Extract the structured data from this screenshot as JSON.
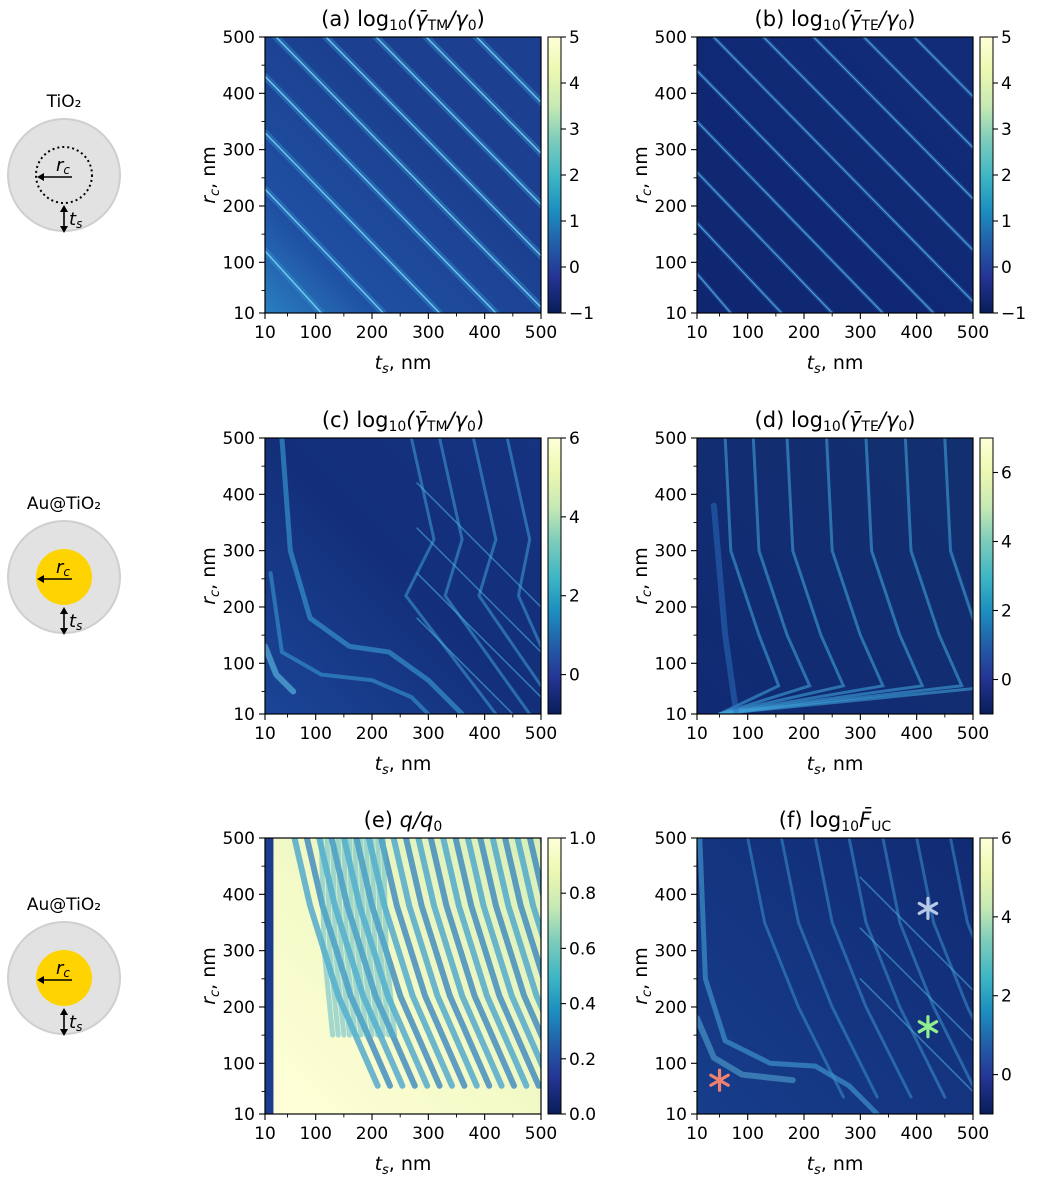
{
  "rows": [
    {
      "schematic": {
        "label": "TiO₂",
        "core": "dotted",
        "rc_label": "r",
        "rc_sub": "c",
        "ts_label": "t",
        "ts_sub": "s"
      },
      "panels": [
        {
          "id": "a",
          "title": "(a) log₁₀(γ̄ₙₘ/γ₀)"
        },
        {
          "id": "b",
          "title": "(b) log₁₀(γ̄ₜₑ/γ₀)"
        }
      ]
    },
    {
      "schematic": {
        "label": "Au@TiO₂",
        "core": "gold",
        "rc_label": "r",
        "rc_sub": "c",
        "ts_label": "t",
        "ts_sub": "s"
      },
      "panels": [
        {
          "id": "c",
          "title": "(c) log₁₀(γ̄ₙₘ/γ₀)"
        },
        {
          "id": "d",
          "title": "(d) log₁₀(γ̄ₜₑ/γ₀)"
        }
      ]
    },
    {
      "schematic": {
        "label": "Au@TiO₂",
        "core": "gold",
        "rc_label": "r",
        "rc_sub": "c",
        "ts_label": "t",
        "ts_sub": "s"
      },
      "panels": [
        {
          "id": "e",
          "title": "(e) q/q₀"
        },
        {
          "id": "f",
          "title": "(f) log₁₀F̄ᵤᶜ"
        }
      ]
    }
  ],
  "chart_data": [
    {
      "id": "a",
      "type": "heatmap",
      "title_prefix": "(a) log",
      "title_sub": "10",
      "title_frac": "(γ̄",
      "title_frac_sub": "TM",
      "title_den": "/γ",
      "title_den_sub": "0",
      "title_end": ")",
      "xlabel_main": "t",
      "xlabel_sub": "s",
      "xlabel_unit": ", nm",
      "ylabel_main": "r",
      "ylabel_sub": "c",
      "ylabel_unit": ", nm",
      "xlim": [
        10,
        500
      ],
      "ylim": [
        10,
        500
      ],
      "xticks": [
        10,
        100,
        200,
        300,
        400,
        500
      ],
      "yticks": [
        10,
        100,
        200,
        300,
        400,
        500
      ],
      "colorbar": {
        "min": -1,
        "max": 5,
        "ticks": [
          5,
          4,
          3,
          2,
          1,
          0,
          -1
        ],
        "tick_labels": [
          "5",
          "4",
          "3",
          "2",
          "1",
          "0",
          "−1"
        ]
      }
    },
    {
      "id": "b",
      "type": "heatmap",
      "title_prefix": "(b) log",
      "title_sub": "10",
      "title_frac": "(γ̄",
      "title_frac_sub": "TE",
      "title_den": "/γ",
      "title_den_sub": "0",
      "title_end": ")",
      "xlabel_main": "t",
      "xlabel_sub": "s",
      "xlabel_unit": ", nm",
      "ylabel_main": "r",
      "ylabel_sub": "c",
      "ylabel_unit": ", nm",
      "xlim": [
        10,
        500
      ],
      "ylim": [
        10,
        500
      ],
      "xticks": [
        10,
        100,
        200,
        300,
        400,
        500
      ],
      "yticks": [
        10,
        100,
        200,
        300,
        400,
        500
      ],
      "colorbar": {
        "min": -1,
        "max": 5,
        "ticks": [
          5,
          4,
          3,
          2,
          1,
          0,
          -1
        ],
        "tick_labels": [
          "5",
          "4",
          "3",
          "2",
          "1",
          "0",
          "−1"
        ]
      }
    },
    {
      "id": "c",
      "type": "heatmap",
      "title_prefix": "(c) log",
      "title_sub": "10",
      "title_frac": "(γ̄",
      "title_frac_sub": "TM",
      "title_den": "/γ",
      "title_den_sub": "0",
      "title_end": ")",
      "xlabel_main": "t",
      "xlabel_sub": "s",
      "xlabel_unit": ", nm",
      "ylabel_main": "r",
      "ylabel_sub": "c",
      "ylabel_unit": ", nm",
      "xlim": [
        10,
        500
      ],
      "ylim": [
        10,
        500
      ],
      "xticks": [
        10,
        100,
        200,
        300,
        400,
        500
      ],
      "yticks": [
        10,
        100,
        200,
        300,
        400,
        500
      ],
      "colorbar": {
        "min": -1,
        "max": 6,
        "ticks": [
          6,
          4,
          2,
          0
        ],
        "tick_labels": [
          "6",
          "4",
          "2",
          "0"
        ]
      }
    },
    {
      "id": "d",
      "type": "heatmap",
      "title_prefix": "(d) log",
      "title_sub": "10",
      "title_frac": "(γ̄",
      "title_frac_sub": "TE",
      "title_den": "/γ",
      "title_den_sub": "0",
      "title_end": ")",
      "xlabel_main": "t",
      "xlabel_sub": "s",
      "xlabel_unit": ", nm",
      "ylabel_main": "r",
      "ylabel_sub": "c",
      "ylabel_unit": ", nm",
      "xlim": [
        10,
        500
      ],
      "ylim": [
        10,
        500
      ],
      "xticks": [
        10,
        100,
        200,
        300,
        400,
        500
      ],
      "yticks": [
        10,
        100,
        200,
        300,
        400,
        500
      ],
      "colorbar": {
        "min": -1,
        "max": 7,
        "ticks": [
          6,
          4,
          2,
          0
        ],
        "tick_labels": [
          "6",
          "4",
          "2",
          "0"
        ]
      }
    },
    {
      "id": "e",
      "type": "heatmap",
      "title_prefix": "(e) ",
      "title_sub": "",
      "title_frac": "q/q",
      "title_frac_sub": "0",
      "title_den": "",
      "title_den_sub": "",
      "title_end": "",
      "xlabel_main": "t",
      "xlabel_sub": "s",
      "xlabel_unit": ", nm",
      "ylabel_main": "r",
      "ylabel_sub": "c",
      "ylabel_unit": ", nm",
      "xlim": [
        10,
        500
      ],
      "ylim": [
        10,
        500
      ],
      "xticks": [
        10,
        100,
        200,
        300,
        400,
        500
      ],
      "yticks": [
        10,
        100,
        200,
        300,
        400,
        500
      ],
      "colorbar": {
        "min": 0,
        "max": 1,
        "ticks": [
          1.0,
          0.8,
          0.6,
          0.4,
          0.2,
          0.0
        ],
        "tick_labels": [
          "1.0",
          "0.8",
          "0.6",
          "0.4",
          "0.2",
          "0.0"
        ]
      }
    },
    {
      "id": "f",
      "type": "heatmap",
      "title_prefix": "(f) log",
      "title_sub": "10",
      "title_frac": "F̄",
      "title_frac_sub": "UC",
      "title_den": "",
      "title_den_sub": "",
      "title_end": "",
      "xlabel_main": "t",
      "xlabel_sub": "s",
      "xlabel_unit": ", nm",
      "ylabel_main": "r",
      "ylabel_sub": "c",
      "ylabel_unit": ", nm",
      "xlim": [
        10,
        500
      ],
      "ylim": [
        10,
        500
      ],
      "xticks": [
        10,
        100,
        200,
        300,
        400,
        500
      ],
      "yticks": [
        10,
        100,
        200,
        300,
        400,
        500
      ],
      "colorbar": {
        "min": -1,
        "max": 6,
        "ticks": [
          6,
          4,
          2,
          0
        ],
        "tick_labels": [
          "6",
          "4",
          "2",
          "0"
        ]
      },
      "markers": [
        {
          "x": 50,
          "y": 70,
          "color": "#f08070"
        },
        {
          "x": 420,
          "y": 165,
          "color": "#90ee90"
        },
        {
          "x": 420,
          "y": 375,
          "color": "#b8c8e8"
        }
      ]
    }
  ]
}
